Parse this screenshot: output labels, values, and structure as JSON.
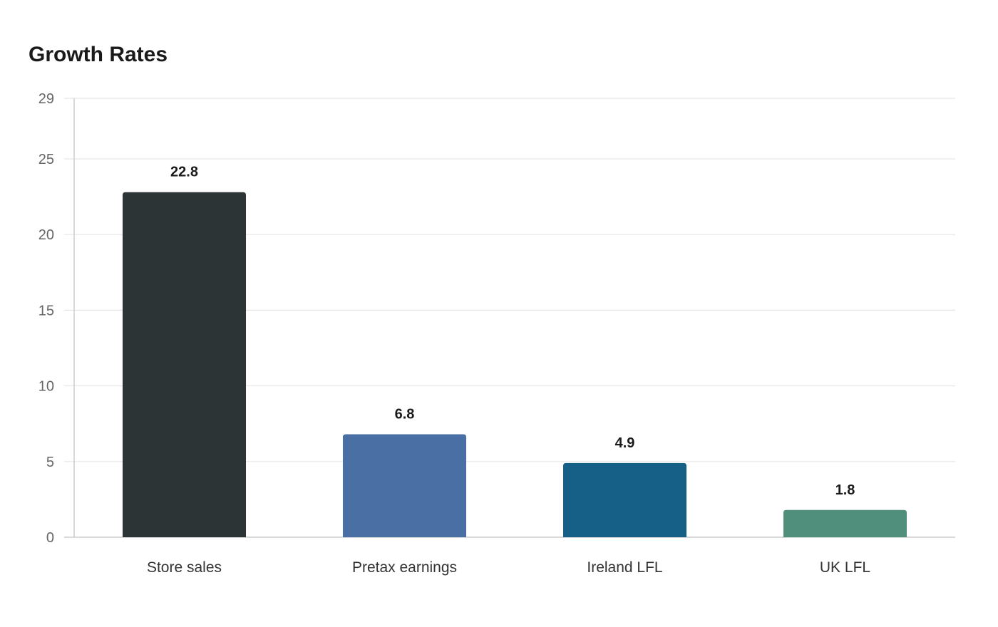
{
  "chart_data": {
    "type": "bar",
    "title": "Growth Rates",
    "xlabel": "",
    "ylabel": "",
    "categories": [
      "Store sales",
      "Pretax earnings",
      "Ireland LFL",
      "UK LFL"
    ],
    "values": [
      22.8,
      6.8,
      4.9,
      1.8
    ],
    "data_labels": [
      "22.8",
      "6.8",
      "4.9",
      "1.8"
    ],
    "colors": [
      "#2d3436",
      "#4a6fa5",
      "#166088",
      "#4f8f7b"
    ],
    "ylim": [
      0,
      29
    ],
    "yticks": [
      0,
      5,
      10,
      15,
      20,
      25,
      29
    ],
    "ytick_labels": [
      "0",
      "5",
      "10",
      "15",
      "20",
      "25",
      "29"
    ],
    "grid": true,
    "legend": "none"
  }
}
